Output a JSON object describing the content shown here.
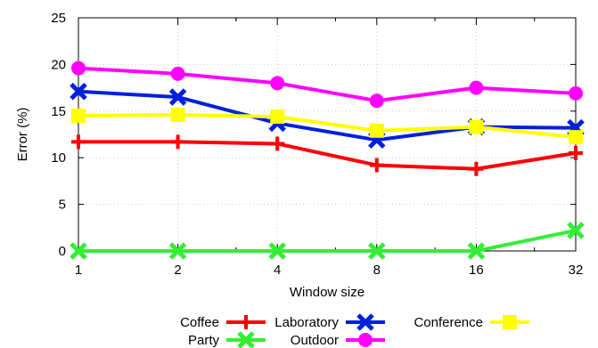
{
  "chart_data": {
    "type": "line",
    "xlabel": "Window size",
    "ylabel": "Error (%)",
    "x_scale": "log2",
    "categories": [
      "1",
      "2",
      "4",
      "8",
      "16",
      "32"
    ],
    "x": [
      1,
      2,
      4,
      8,
      16,
      32
    ],
    "ylim": [
      0,
      25
    ],
    "yticks": [
      "0",
      "5",
      "10",
      "15",
      "20",
      "25"
    ],
    "grid": true,
    "legend_position": "bottom",
    "series": [
      {
        "name": "Coffee",
        "color": "#ff0000",
        "marker": "plus",
        "values": [
          11.7,
          11.7,
          11.5,
          9.2,
          8.8,
          10.5
        ]
      },
      {
        "name": "Laboratory",
        "color": "#0020dd",
        "marker": "x",
        "values": [
          17.1,
          16.5,
          13.7,
          11.9,
          13.3,
          13.2
        ]
      },
      {
        "name": "Conference",
        "color": "#ffff00",
        "marker": "square",
        "values": [
          14.5,
          14.6,
          14.4,
          12.9,
          13.3,
          12.2
        ]
      },
      {
        "name": "Party",
        "color": "#33ee33",
        "marker": "x",
        "values": [
          0,
          0,
          0,
          0,
          0,
          2.2
        ]
      },
      {
        "name": "Outdoor",
        "color": "#ff00ff",
        "marker": "circle",
        "values": [
          19.6,
          19.0,
          18.0,
          16.1,
          17.5,
          16.9
        ]
      }
    ]
  }
}
